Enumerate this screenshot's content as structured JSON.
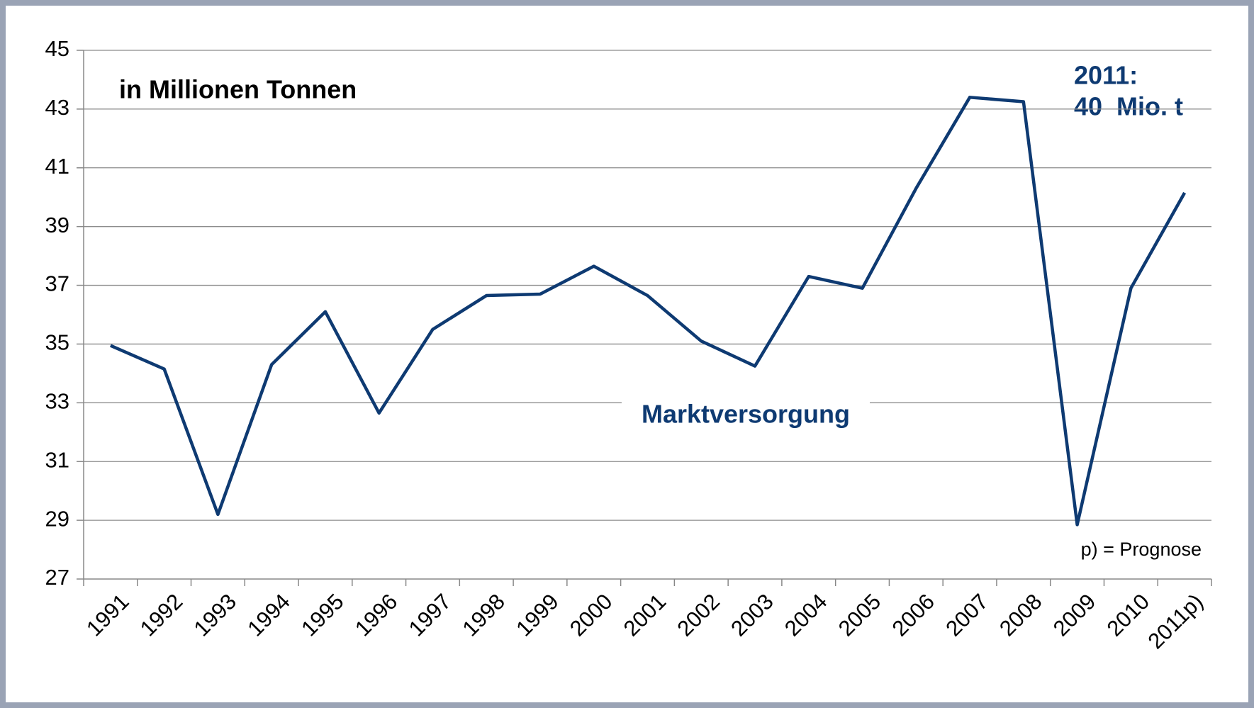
{
  "chart_data": {
    "type": "line",
    "categories": [
      "1991",
      "1992",
      "1993",
      "1994",
      "1995",
      "1996",
      "1997",
      "1998",
      "1999",
      "2000",
      "2001",
      "2002",
      "2003",
      "2004",
      "2005",
      "2006",
      "2007",
      "2008",
      "2009",
      "2010",
      "2011p)"
    ],
    "series": [
      {
        "name": "Marktversorgung",
        "color": "#0e3a72",
        "values": [
          34.95,
          34.15,
          29.2,
          34.3,
          36.1,
          32.65,
          35.5,
          36.65,
          36.7,
          37.65,
          36.65,
          35.1,
          34.25,
          37.3,
          36.9,
          40.3,
          43.4,
          43.25,
          28.85,
          36.9,
          40.15
        ]
      }
    ],
    "ylim": [
      27,
      45
    ],
    "yticks": [
      27,
      29,
      31,
      33,
      35,
      37,
      39,
      41,
      43,
      45
    ],
    "grid": true,
    "annotations": [
      "in Millionen Tonnen",
      "2011:",
      "40  Mio. t",
      "p) = Prognose"
    ]
  }
}
